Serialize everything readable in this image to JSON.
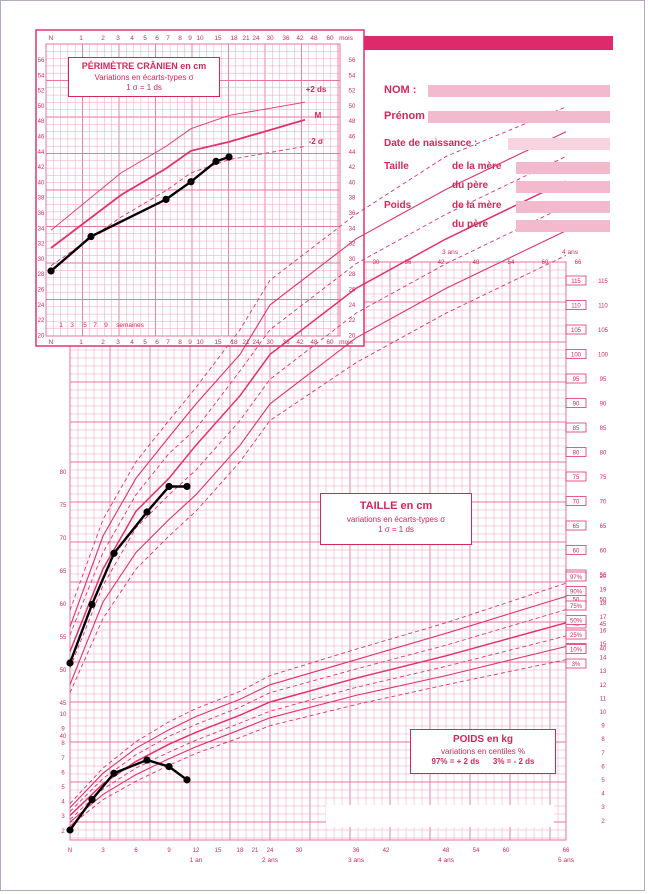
{
  "header_band_color": "#de2a6a",
  "colors": {
    "grid": "#f2a2bc",
    "grid_major": "#e8769a",
    "curve": "#e0336d",
    "plot": "#000000",
    "text": "#d5275a"
  },
  "identity": {
    "nom_label": "NOM :",
    "prenom_label": "Prénom :",
    "date_label": "Date de naissance :",
    "taille_label": "Taille",
    "poids_label": "Poids",
    "mere_label_1": "de la mère",
    "pere_label_1": "du père",
    "mere_label_2": "de la mère",
    "pere_label_2": "du père"
  },
  "head_box": {
    "title": "PÉRIMÈTRE CRÂNIEN en cm",
    "line2": "Variations en écarts-types σ",
    "line3": "1 σ = 1 ds"
  },
  "head_curve_labels": {
    "plus2": "+2 ds",
    "m": "M",
    "minus2": "-2 σ"
  },
  "head_axis": {
    "top_ticks": [
      "N",
      "1",
      "2",
      "3",
      "4",
      "5",
      "6",
      "7",
      "8",
      "9",
      "10",
      "15",
      "18",
      "21",
      "24",
      "30",
      "36",
      "42",
      "48",
      "60",
      "mois"
    ],
    "bottom_ticks": [
      "N",
      "1",
      "2",
      "3",
      "4",
      "5",
      "6",
      "7",
      "8",
      "9",
      "10",
      "15",
      "18",
      "21",
      "24",
      "30",
      "36",
      "42",
      "48",
      "60",
      "mois"
    ],
    "week_ticks": [
      "1",
      "3",
      "5",
      "7",
      "9",
      "semaines"
    ],
    "y_ticks": [
      "56",
      "54",
      "52",
      "50",
      "48",
      "46",
      "44",
      "42",
      "40",
      "38",
      "36",
      "34",
      "32",
      "30",
      "28",
      "26",
      "24",
      "22",
      "20"
    ]
  },
  "taille_box": {
    "title": "TAILLE en cm",
    "line2": "variations en écarts-types σ",
    "line3": "1 σ = 1 ds"
  },
  "poids_box": {
    "title": "POIDS en kg",
    "line2": "variations en centiles %",
    "line3": "97% = + 2 ds      3% = - 2 ds"
  },
  "main_axis": {
    "top_labels": [
      "30",
      "36",
      "42",
      "48",
      "54",
      "60",
      "66"
    ],
    "top_year_labels": [
      "3 ans",
      "4 ans"
    ],
    "taille_y_ticks": [
      "115",
      "110",
      "105",
      "100",
      "95",
      "90",
      "85",
      "80",
      "75",
      "70",
      "65",
      "60",
      "55",
      "50",
      "45",
      "40"
    ],
    "poids_y_ticks": [
      "20",
      "19",
      "18",
      "17",
      "16",
      "15",
      "14",
      "13",
      "12",
      "11",
      "10",
      "9",
      "8",
      "7",
      "6",
      "5",
      "4",
      "3",
      "2"
    ],
    "left_cm_ticks": [
      "80",
      "75",
      "70",
      "65",
      "60",
      "55",
      "50",
      "45",
      "40"
    ],
    "left_kg_ticks": [
      "10",
      "9",
      "8",
      "7",
      "6",
      "5",
      "4",
      "3",
      "2"
    ],
    "bottom_labels": [
      "N",
      "3",
      "6",
      "9",
      "12",
      "15",
      "18",
      "21",
      "24",
      "30",
      "36",
      "42",
      "48",
      "54",
      "60",
      "66"
    ],
    "bottom_year_labels": [
      "1 an",
      "2 ans",
      "3 ans",
      "4 ans",
      "5 ans"
    ],
    "sigma_tags": [
      "+3 σ",
      "+2 σ",
      "+1 σ",
      "M",
      "-1 σ",
      "-2 σ",
      "-3 σ"
    ],
    "pct_tags": [
      "97%",
      "90%",
      "75%",
      "50%",
      "25%",
      "10%",
      "3%"
    ]
  },
  "chart_data": [
    {
      "type": "line",
      "title": "PÉRIMÈTRE CRÂNIEN en cm",
      "xlabel": "mois",
      "ylabel": "cm",
      "ylim": [
        20,
        57
      ],
      "series": [
        {
          "name": "+2 ds",
          "x": [
            0,
            3,
            6,
            9,
            12,
            18
          ],
          "values": [
            37,
            43.5,
            46.5,
            48.5,
            50,
            51.5
          ]
        },
        {
          "name": "M",
          "x": [
            0,
            3,
            6,
            9,
            12,
            18
          ],
          "values": [
            35,
            41,
            44,
            46,
            47,
            49.5
          ]
        },
        {
          "name": "-2 σ",
          "x": [
            0,
            3,
            6,
            9,
            12,
            18
          ],
          "values": [
            33,
            38.5,
            41.5,
            43.5,
            45,
            46.5
          ]
        },
        {
          "name": "",
          "x": [
            0,
            1,
            6,
            9,
            11,
            12
          ],
          "values": [
            32.4,
            36.3,
            40.5,
            42.5,
            44.8,
            45.3
          ]
        }
      ]
    },
    {
      "type": "line",
      "title": "TAILLE en cm",
      "xlabel": "mois",
      "ylabel": "cm",
      "ylim": [
        40,
        117
      ],
      "series": [
        {
          "name": "+3 σ",
          "x": [
            0,
            3,
            6,
            9,
            12,
            18,
            24,
            36,
            48,
            66
          ],
          "values": [
            55,
            66,
            73,
            78,
            82,
            89,
            95,
            103,
            110,
            116
          ]
        },
        {
          "name": "+2 σ",
          "x": [
            0,
            3,
            6,
            9,
            12,
            18,
            24,
            36,
            48,
            66
          ],
          "values": [
            53,
            64,
            71,
            76,
            80,
            86,
            92,
            100,
            106,
            113
          ]
        },
        {
          "name": "+1 σ",
          "x": [
            0,
            3,
            6,
            9,
            12,
            18,
            24,
            36,
            48,
            66
          ],
          "values": [
            52,
            62,
            69,
            74,
            77,
            84,
            89,
            97,
            103,
            110
          ]
        },
        {
          "name": "M",
          "x": [
            0,
            3,
            6,
            9,
            12,
            18,
            24,
            36,
            48,
            66
          ],
          "values": [
            50,
            60,
            67,
            71,
            75,
            81,
            86,
            94,
            100,
            107
          ]
        },
        {
          "name": "-1 σ",
          "x": [
            0,
            3,
            6,
            9,
            12,
            18,
            24,
            36,
            48,
            66
          ],
          "values": [
            48,
            58,
            65,
            69,
            72,
            78,
            83,
            91,
            97,
            104
          ]
        },
        {
          "name": "-2 σ",
          "x": [
            0,
            3,
            6,
            9,
            12,
            18,
            24,
            36,
            48,
            66
          ],
          "values": [
            46,
            56,
            62,
            66,
            69,
            75,
            80,
            88,
            94,
            101
          ]
        },
        {
          "name": "-3 σ",
          "x": [
            0,
            3,
            6,
            9,
            12,
            18,
            24,
            36,
            48,
            66
          ],
          "values": [
            45,
            54,
            60,
            64,
            67,
            73,
            78,
            85,
            91,
            98
          ]
        },
        {
          "name": "",
          "x": [
            0,
            2,
            4,
            7,
            9,
            11
          ],
          "values": [
            48.6,
            55.7,
            61.9,
            66.9,
            70,
            70
          ]
        }
      ]
    },
    {
      "type": "line",
      "title": "POIDS en kg",
      "xlabel": "mois",
      "ylabel": "kg",
      "ylim": [
        1.5,
        21
      ],
      "series": [
        {
          "name": "97%",
          "x": [
            0,
            3,
            6,
            9,
            12,
            18,
            24,
            36,
            48,
            66
          ],
          "values": [
            4.3,
            7,
            9,
            10.5,
            11.5,
            12.8,
            14,
            16,
            18,
            21
          ]
        },
        {
          "name": "90%",
          "x": [
            0,
            3,
            6,
            9,
            12,
            18,
            24,
            36,
            48,
            66
          ],
          "values": [
            4,
            6.6,
            8.5,
            9.9,
            10.9,
            12.2,
            13.3,
            15.2,
            17.2,
            20
          ]
        },
        {
          "name": "75%",
          "x": [
            0,
            3,
            6,
            9,
            12,
            18,
            24,
            36,
            48,
            66
          ],
          "values": [
            3.7,
            6.2,
            8,
            9.4,
            10.3,
            11.6,
            12.7,
            14.5,
            16.3,
            19
          ]
        },
        {
          "name": "50%",
          "x": [
            0,
            3,
            6,
            9,
            12,
            18,
            24,
            36,
            48,
            66
          ],
          "values": [
            3.4,
            5.8,
            7.5,
            8.8,
            9.7,
            11,
            12,
            13.8,
            15.5,
            18
          ]
        },
        {
          "name": "25%",
          "x": [
            0,
            3,
            6,
            9,
            12,
            18,
            24,
            36,
            48,
            66
          ],
          "values": [
            3.1,
            5.4,
            7,
            8.2,
            9.1,
            10.4,
            11.3,
            13.1,
            14.7,
            17
          ]
        },
        {
          "name": "10%",
          "x": [
            0,
            3,
            6,
            9,
            12,
            18,
            24,
            36,
            48,
            66
          ],
          "values": [
            2.9,
            5,
            6.5,
            7.7,
            8.6,
            9.9,
            10.8,
            12.5,
            14,
            16.2
          ]
        },
        {
          "name": "3%",
          "x": [
            0,
            3,
            6,
            9,
            12,
            18,
            24,
            36,
            48,
            66
          ],
          "values": [
            2.6,
            4.6,
            6,
            7.2,
            8.1,
            9.3,
            10.2,
            11.8,
            13.3,
            15.2
          ]
        },
        {
          "name": "",
          "x": [
            0,
            2,
            4,
            7,
            9,
            11
          ],
          "values": [
            2.3,
            4.6,
            6.6,
            7.6,
            7.1,
            6.1
          ]
        }
      ]
    }
  ]
}
